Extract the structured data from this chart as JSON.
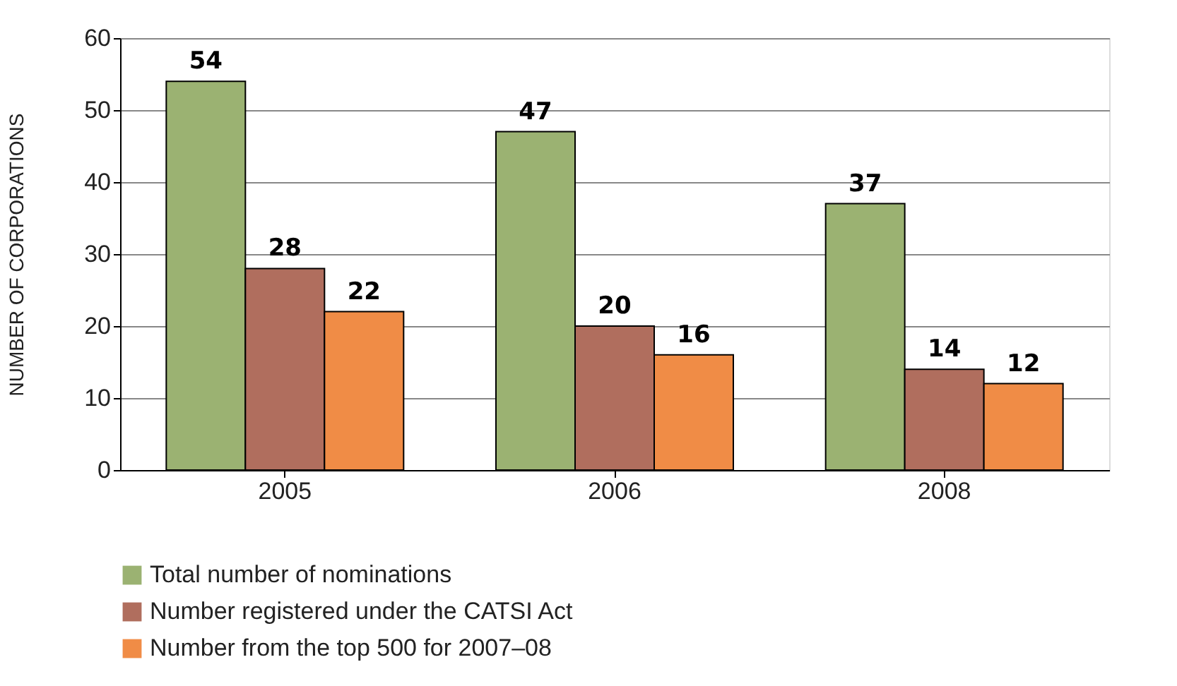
{
  "chart_data": {
    "type": "bar",
    "ylabel": "NUMBER OF CORPORATIONS",
    "categories": [
      "2005",
      "2006",
      "2008"
    ],
    "series": [
      {
        "name": "Total number of nominations",
        "color": "#9bb272",
        "values": [
          54,
          47,
          37
        ]
      },
      {
        "name": "Number registered under the CATSI Act",
        "color": "#b06e5e",
        "values": [
          28,
          20,
          14
        ]
      },
      {
        "name": "Number from the top 500 for 2007–08",
        "color": "#f08c46",
        "values": [
          22,
          16,
          12
        ]
      }
    ],
    "ylim": [
      0,
      60
    ],
    "yticks": [
      0,
      10,
      20,
      30,
      40,
      50,
      60
    ],
    "grid": "y",
    "legend": "bottom",
    "data_labels": true
  }
}
